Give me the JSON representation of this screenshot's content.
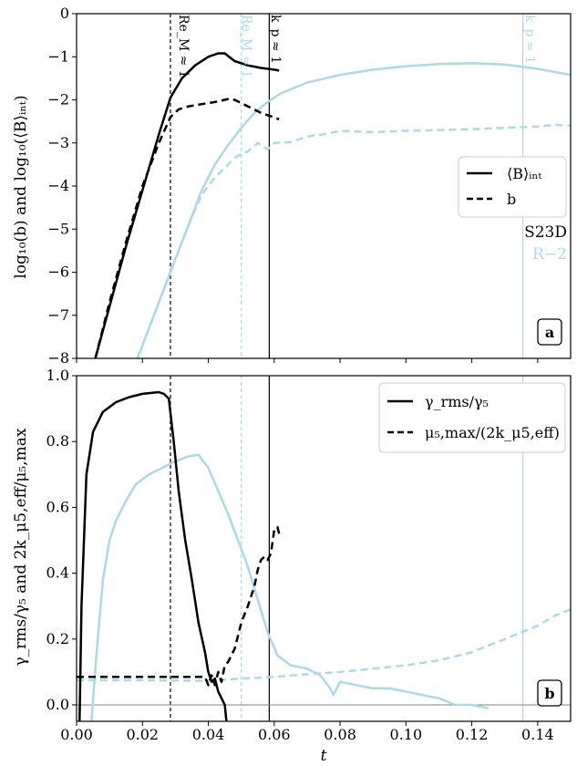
{
  "colors": {
    "black": "#000000",
    "blue": "#add8e6",
    "zero_line": "#808080"
  },
  "common": {
    "xlabel": "t",
    "xlim": [
      0,
      0.15
    ],
    "xticks": [
      0.0,
      0.02,
      0.04,
      0.06,
      0.08,
      0.1,
      0.12,
      0.14
    ],
    "xtick_labels": [
      "0.00",
      "0.02",
      "0.04",
      "0.06",
      "0.08",
      "0.10",
      "0.12",
      "0.14"
    ]
  },
  "chart_data": [
    {
      "type": "line",
      "panel_label": "a",
      "ylabel": "log₁₀(b) and log₁₀(⟨B⟩ᵢₙₜ)",
      "ylim": [
        -8,
        0
      ],
      "yticks": [
        0,
        -1,
        -2,
        -3,
        -4,
        -5,
        -6,
        -7,
        -8
      ],
      "ytick_labels": [
        "0",
        "−1",
        "−2",
        "−3",
        "−4",
        "−5",
        "−6",
        "−7",
        "−8"
      ],
      "legend_position": "center-right",
      "legend": [
        {
          "label": "⟨B⟩ᵢₙₜ",
          "style": "solid"
        },
        {
          "label": "b",
          "style": "dashed"
        }
      ],
      "run_labels": [
        {
          "text": "S23D",
          "color": "#000000"
        },
        {
          "text": "R−2",
          "color": "#add8e6"
        }
      ],
      "vlines": [
        {
          "x": 0.0285,
          "color": "#000000",
          "style": "dashed",
          "label": "Re_M ≈ 1"
        },
        {
          "x": 0.0585,
          "color": "#000000",
          "style": "solid",
          "label": "k_p ≈ 1"
        },
        {
          "x": 0.05,
          "color": "#add8e6",
          "style": "dashed",
          "label": "Re_M ≈ 1"
        },
        {
          "x": 0.1355,
          "color": "#add8e6",
          "style": "solid",
          "label": "k_p ≈ 1"
        }
      ],
      "series": [
        {
          "name": "⟨B⟩ᵢₙₜ",
          "run": "S23D",
          "color": "#000000",
          "style": "solid",
          "x": [
            0.0057,
            0.01,
            0.015,
            0.02,
            0.025,
            0.0285,
            0.032,
            0.036,
            0.04,
            0.043,
            0.045,
            0.048,
            0.052,
            0.056,
            0.06,
            0.0615
          ],
          "y": [
            -8,
            -6.8,
            -5.4,
            -4.1,
            -2.8,
            -1.95,
            -1.5,
            -1.2,
            -1.0,
            -0.92,
            -0.92,
            -1.1,
            -1.2,
            -1.26,
            -1.3,
            -1.32
          ]
        },
        {
          "name": "b",
          "run": "S23D",
          "color": "#000000",
          "style": "dashed",
          "x": [
            0.0057,
            0.01,
            0.015,
            0.02,
            0.025,
            0.0285,
            0.031,
            0.034,
            0.038,
            0.042,
            0.046,
            0.048,
            0.052,
            0.056,
            0.0615
          ],
          "y": [
            -8,
            -6.7,
            -5.3,
            -4.0,
            -3.0,
            -2.4,
            -2.22,
            -2.15,
            -2.1,
            -2.05,
            -1.98,
            -2.0,
            -2.15,
            -2.3,
            -2.45
          ]
        },
        {
          "name": "⟨B⟩ᵢₙₜ",
          "run": "R−2",
          "color": "#add8e6",
          "style": "solid",
          "x": [
            0.0185,
            0.022,
            0.026,
            0.03,
            0.034,
            0.038,
            0.042,
            0.046,
            0.05,
            0.054,
            0.058,
            0.062,
            0.07,
            0.08,
            0.09,
            0.1,
            0.11,
            0.12,
            0.13,
            0.14,
            0.15
          ],
          "y": [
            -8,
            -7.3,
            -6.5,
            -5.7,
            -4.9,
            -4.1,
            -3.5,
            -3.05,
            -2.65,
            -2.3,
            -2.05,
            -1.85,
            -1.6,
            -1.42,
            -1.3,
            -1.22,
            -1.17,
            -1.15,
            -1.18,
            -1.28,
            -1.42
          ]
        },
        {
          "name": "b",
          "run": "R−2",
          "color": "#add8e6",
          "style": "dashed",
          "x": [
            0.0185,
            0.022,
            0.026,
            0.03,
            0.034,
            0.038,
            0.042,
            0.046,
            0.048,
            0.05,
            0.052,
            0.055,
            0.058,
            0.06,
            0.065,
            0.07,
            0.075,
            0.08,
            0.09,
            0.1,
            0.11,
            0.12,
            0.13,
            0.14,
            0.145,
            0.15
          ],
          "y": [
            -8,
            -7.3,
            -6.5,
            -5.7,
            -4.9,
            -4.2,
            -3.8,
            -3.5,
            -3.35,
            -3.25,
            -3.2,
            -3.0,
            -3.15,
            -3.0,
            -2.98,
            -2.85,
            -2.8,
            -2.72,
            -2.75,
            -2.72,
            -2.7,
            -2.68,
            -2.65,
            -2.62,
            -2.58,
            -2.6
          ]
        }
      ]
    },
    {
      "type": "line",
      "panel_label": "b",
      "ylabel": "γ_rms/γ₅ and 2k_μ5,eff/μ₅,max",
      "ylim": [
        -0.05,
        1.0
      ],
      "yticks": [
        0.0,
        0.2,
        0.4,
        0.6,
        0.8,
        1.0
      ],
      "ytick_labels": [
        "0.0",
        "0.2",
        "0.4",
        "0.6",
        "0.8",
        "1.0"
      ],
      "legend_position": "top-right",
      "legend": [
        {
          "label": "γ_rms/γ₅",
          "style": "solid"
        },
        {
          "label": "μ₅,max/(2k_μ5,eff)",
          "style": "dashed"
        }
      ],
      "zero_line": 0,
      "vlines": [
        {
          "x": 0.0285,
          "color": "#000000",
          "style": "dashed"
        },
        {
          "x": 0.0585,
          "color": "#000000",
          "style": "solid"
        },
        {
          "x": 0.05,
          "color": "#add8e6",
          "style": "dashed"
        },
        {
          "x": 0.1355,
          "color": "#add8e6",
          "style": "solid"
        }
      ],
      "series": [
        {
          "name": "γ_rms/γ₅",
          "run": "S23D",
          "color": "#000000",
          "style": "solid",
          "x": [
            0.0009,
            0.0015,
            0.003,
            0.005,
            0.008,
            0.012,
            0.016,
            0.02,
            0.023,
            0.025,
            0.0265,
            0.028,
            0.0295,
            0.031,
            0.033,
            0.035,
            0.037,
            0.039,
            0.04,
            0.041,
            0.042,
            0.043,
            0.044,
            0.045,
            0.0455
          ],
          "y": [
            -0.05,
            0.3,
            0.7,
            0.83,
            0.89,
            0.92,
            0.935,
            0.945,
            0.948,
            0.95,
            0.945,
            0.93,
            0.8,
            0.65,
            0.5,
            0.38,
            0.25,
            0.16,
            0.1,
            0.07,
            0.08,
            0.04,
            0.02,
            0.0,
            -0.05
          ]
        },
        {
          "name": "μ₅,max/(2k_μ5,eff)",
          "run": "S23D",
          "color": "#000000",
          "style": "dashed",
          "x": [
            0.0,
            0.01,
            0.02,
            0.028,
            0.035,
            0.039,
            0.04,
            0.041,
            0.042,
            0.043,
            0.044,
            0.045,
            0.046,
            0.047,
            0.048,
            0.049,
            0.05,
            0.052,
            0.054,
            0.055,
            0.056,
            0.057,
            0.058,
            0.059,
            0.06,
            0.061,
            0.0615
          ],
          "y": [
            0.085,
            0.085,
            0.085,
            0.085,
            0.085,
            0.085,
            0.06,
            0.09,
            0.06,
            0.1,
            0.07,
            0.12,
            0.13,
            0.15,
            0.17,
            0.21,
            0.25,
            0.3,
            0.36,
            0.41,
            0.44,
            0.45,
            0.44,
            0.46,
            0.53,
            0.54,
            0.52
          ]
        },
        {
          "name": "γ_rms/γ₅",
          "run": "R−2",
          "color": "#add8e6",
          "style": "solid",
          "x": [
            0.0045,
            0.006,
            0.008,
            0.01,
            0.012,
            0.015,
            0.018,
            0.022,
            0.026,
            0.03,
            0.034,
            0.037,
            0.04,
            0.043,
            0.046,
            0.049,
            0.052,
            0.055,
            0.058,
            0.061,
            0.065,
            0.07,
            0.074,
            0.077,
            0.078,
            0.08,
            0.085,
            0.09,
            0.095,
            0.1,
            0.105,
            0.11,
            0.115,
            0.12,
            0.125
          ],
          "y": [
            -0.05,
            0.15,
            0.38,
            0.5,
            0.56,
            0.62,
            0.67,
            0.7,
            0.72,
            0.74,
            0.755,
            0.76,
            0.72,
            0.65,
            0.58,
            0.5,
            0.42,
            0.32,
            0.22,
            0.15,
            0.12,
            0.11,
            0.09,
            0.05,
            0.03,
            0.07,
            0.06,
            0.05,
            0.05,
            0.04,
            0.03,
            0.02,
            0.0,
            0.0,
            -0.01
          ]
        },
        {
          "name": "μ₅,max/(2k_μ5,eff)",
          "run": "R−2",
          "color": "#add8e6",
          "style": "dashed",
          "x": [
            0.0,
            0.02,
            0.04,
            0.05,
            0.06,
            0.07,
            0.08,
            0.09,
            0.1,
            0.11,
            0.12,
            0.13,
            0.14,
            0.145,
            0.15
          ],
          "y": [
            0.075,
            0.075,
            0.073,
            0.08,
            0.085,
            0.093,
            0.1,
            0.11,
            0.12,
            0.135,
            0.16,
            0.2,
            0.24,
            0.27,
            0.29
          ]
        }
      ]
    }
  ]
}
